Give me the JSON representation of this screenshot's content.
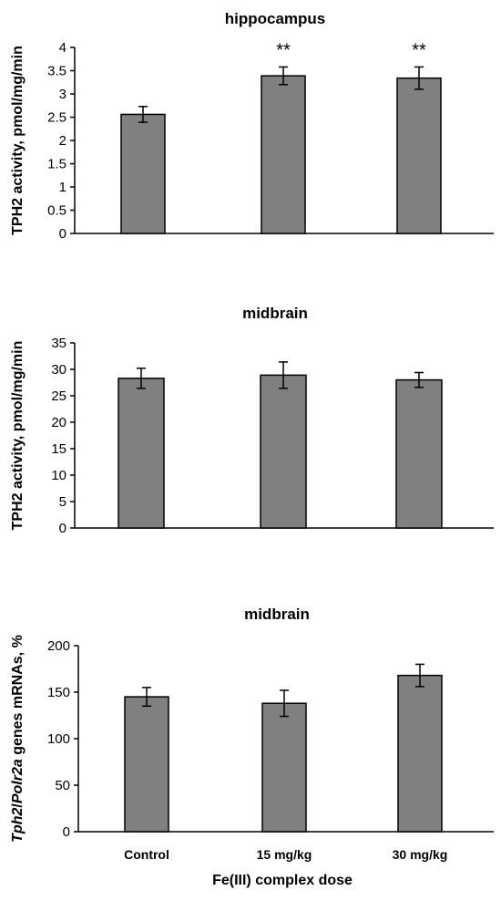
{
  "chart_data": [
    {
      "type": "bar",
      "title": "hippocampus",
      "ylabel": "TPH2 activity, pmol/mg/min",
      "ylim": [
        0,
        4
      ],
      "yticks": [
        "0",
        "0.5",
        "1",
        "1.5",
        "2",
        "2.5",
        "3",
        "3.5",
        "4"
      ],
      "categories": [
        "Control",
        "15 mg/kg",
        "30 mg/kg"
      ],
      "values": [
        2.56,
        3.39,
        3.34
      ],
      "errors": [
        0.17,
        0.19,
        0.24
      ],
      "annotations": [
        "",
        "**",
        "**"
      ],
      "bar_color": "#808080"
    },
    {
      "type": "bar",
      "title": "midbrain",
      "ylabel": "TPH2 activity, pmol/mg/min",
      "ylim": [
        0,
        35
      ],
      "yticks": [
        "0",
        "5",
        "10",
        "15",
        "20",
        "25",
        "30",
        "35"
      ],
      "categories": [
        "Control",
        "15 mg/kg",
        "30 mg/kg"
      ],
      "values": [
        28.3,
        28.9,
        28.0
      ],
      "errors": [
        1.9,
        2.5,
        1.4
      ],
      "annotations": [
        "",
        "",
        ""
      ],
      "bar_color": "#808080"
    },
    {
      "type": "bar",
      "title": "midbrain",
      "ylabel_parts": [
        {
          "text": "Tph2",
          "italic": true
        },
        {
          "text": "/",
          "italic": false
        },
        {
          "text": "Polr2a",
          "italic": true
        },
        {
          "text": " genes mRNAs, %",
          "italic": false
        }
      ],
      "ylim": [
        0,
        200
      ],
      "yticks": [
        "0",
        "50",
        "100",
        "150",
        "200"
      ],
      "categories": [
        "Control",
        "15 mg/kg",
        "30 mg/kg"
      ],
      "values": [
        145,
        138,
        168
      ],
      "errors": [
        10,
        14,
        12
      ],
      "annotations": [
        "",
        "",
        ""
      ],
      "xlabel": "Fe(III) complex dose",
      "bar_color": "#808080"
    }
  ]
}
